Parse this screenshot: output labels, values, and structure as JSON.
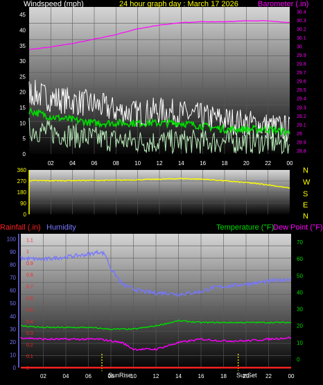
{
  "colors": {
    "white": "#ffffff",
    "yellow": "#ffff00",
    "magenta": "#ff00ff",
    "green": "#00dd00",
    "lightgreen": "#bbeebb",
    "blue": "#7777ff",
    "red": "#ff2222",
    "panel_top": "#d6d6d6",
    "panel_bottom": "#000000",
    "grid": "#5a5a5a"
  },
  "chart_data": [
    {
      "type": "line",
      "title": "24 hour graph day : March 17 2026",
      "left_axis_label": "Windspeed (mph)",
      "right_axis_label": "Barometer (.in)",
      "x_tick_labels": [
        "02",
        "04",
        "06",
        "08",
        "10",
        "12",
        "14",
        "16",
        "18",
        "20",
        "22",
        "00"
      ],
      "left_ticks": [
        0,
        5,
        10,
        15,
        20,
        25,
        30,
        35,
        40,
        45
      ],
      "left_range": [
        0,
        47.5
      ],
      "right_ticks": [
        "28.8",
        "28.9",
        "29",
        "29.1",
        "29.2",
        "29.3",
        "29.4",
        "29.5",
        "29.6",
        "29.7",
        "29.8",
        "29.9",
        "30",
        "30.1",
        "30.2",
        "30.3",
        "30.4"
      ],
      "right_range": [
        28.76,
        30.45
      ],
      "grid": true,
      "x_range_hours": [
        0,
        24
      ],
      "series": [
        {
          "role": "barometer",
          "axis": "right",
          "color": "magenta",
          "noise": 0.003,
          "x": [
            0,
            2,
            4,
            6,
            8,
            10,
            12,
            14,
            16,
            18,
            20,
            22,
            24
          ],
          "y": [
            29.96,
            29.99,
            30.03,
            30.08,
            30.13,
            30.2,
            30.24,
            30.27,
            30.28,
            30.28,
            30.29,
            30.29,
            30.27
          ]
        },
        {
          "role": "wind_gust",
          "axis": "left",
          "color": "white",
          "noise": 4.5,
          "x": [
            0,
            2,
            4,
            6,
            8,
            10,
            12,
            14,
            16,
            18,
            20,
            22,
            24
          ],
          "y": [
            20,
            18,
            17,
            16,
            14,
            13,
            14,
            13,
            12,
            11,
            10,
            9,
            8
          ]
        },
        {
          "role": "wind_avg_spread",
          "axis": "left",
          "color": "lightgreen",
          "noise": 4,
          "x": [
            0,
            2,
            4,
            6,
            8,
            10,
            12,
            14,
            16,
            18,
            20,
            22,
            24
          ],
          "y": [
            8,
            7,
            6,
            5,
            4.5,
            4,
            4,
            4,
            4,
            4,
            4,
            4,
            3
          ]
        },
        {
          "role": "wind_avg",
          "axis": "left",
          "color": "green",
          "noise": 1.2,
          "x": [
            0,
            2,
            4,
            6,
            8,
            10,
            12,
            14,
            16,
            18,
            20,
            22,
            24
          ],
          "y": [
            14,
            12,
            11,
            10,
            10,
            10,
            10,
            10,
            9,
            8,
            8,
            8,
            7
          ]
        }
      ]
    },
    {
      "type": "line",
      "title": "",
      "direction_labels": [
        "N",
        "W",
        "S",
        "E",
        "N"
      ],
      "left_ticks": [
        0,
        90,
        180,
        270,
        360
      ],
      "left_range": [
        0,
        360
      ],
      "x_range_hours": [
        0,
        24
      ],
      "grid": true,
      "series": [
        {
          "role": "wind_direction",
          "color": "yellow",
          "noise": 4,
          "x": [
            0,
            2,
            4,
            6,
            8,
            10,
            12,
            14,
            16,
            18,
            20,
            22,
            24
          ],
          "y": [
            272,
            273,
            274,
            275,
            276,
            280,
            285,
            290,
            285,
            272,
            258,
            240,
            212
          ]
        }
      ]
    },
    {
      "type": "line",
      "title": "",
      "labels": {
        "rainfall": "Rainfall (.in)",
        "humidity": "Humidity",
        "temperature": "Temperature (°F)",
        "dewpoint": "Dew Point (°F)"
      },
      "sunrise_label": "SunRise",
      "sunset_label": "SunSet",
      "sunrise_hour": 7.2,
      "sunset_hour": 19.3,
      "x_tick_labels": [
        "02",
        "04",
        "06",
        "08",
        "10",
        "12",
        "14",
        "16",
        "18",
        "20",
        "22",
        "00"
      ],
      "humidity_ticks": [
        0,
        10,
        20,
        30,
        40,
        50,
        60,
        70,
        80,
        90,
        100
      ],
      "humidity_range": [
        0,
        104
      ],
      "rain_ticks": [
        "0",
        "0.1",
        "0.2",
        "0.3",
        "0.4",
        "0.5",
        "0.6",
        "0.7",
        "0.8",
        "0.9",
        "1",
        "1.1"
      ],
      "rain_range": [
        0,
        1.15
      ],
      "temp_ticks": [
        0,
        10,
        20,
        30,
        40,
        50,
        60,
        70
      ],
      "temp_range": [
        -5,
        75
      ],
      "x_range_hours": [
        0,
        24
      ],
      "grid": true,
      "series": [
        {
          "role": "humidity",
          "axis": "humidity",
          "color": "blue",
          "noise": 1.5,
          "x": [
            0,
            2,
            4,
            6,
            7,
            7.5,
            8,
            9,
            10,
            11,
            12,
            13,
            14,
            15,
            16,
            17,
            18,
            19,
            20,
            22,
            24
          ],
          "y": [
            85,
            84,
            86,
            88,
            90,
            88,
            77,
            65,
            61,
            59,
            58,
            58,
            57,
            58,
            59,
            62,
            63,
            64,
            65,
            67,
            69
          ]
        },
        {
          "role": "temperature",
          "axis": "temp",
          "color": "green",
          "noise": 0.4,
          "x": [
            0,
            2,
            4,
            6,
            8,
            10,
            12,
            14,
            16,
            18,
            20,
            22,
            24
          ],
          "y": [
            20,
            19,
            19,
            19,
            18,
            18,
            20,
            23,
            22,
            22,
            22,
            22,
            22
          ]
        },
        {
          "role": "dewpoint",
          "axis": "temp",
          "color": "magenta",
          "noise": 0.6,
          "x": [
            0,
            2,
            4,
            6,
            7,
            9,
            10,
            12,
            14,
            16,
            18,
            20,
            22,
            24
          ],
          "y": [
            13,
            12,
            12,
            12,
            12,
            10,
            6,
            6,
            10,
            12,
            11,
            11,
            12,
            13
          ]
        },
        {
          "role": "rainfall",
          "axis": "rain",
          "color": "red",
          "noise": 0,
          "x": [
            0,
            24
          ],
          "y": [
            0,
            0
          ]
        }
      ]
    }
  ]
}
